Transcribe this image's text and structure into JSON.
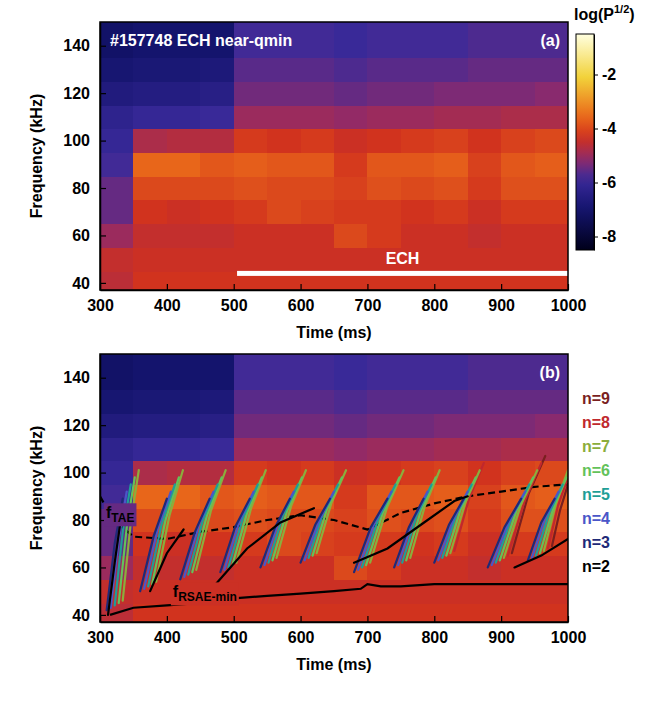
{
  "chart_data": [
    {
      "type": "heatmap",
      "panel": "(a)",
      "title": "#157748 ECH near-qmin",
      "x_label": "Time (ms)",
      "y_label": "Frequency (kHz)",
      "xlim": [
        300,
        1000
      ],
      "xticks": [
        300,
        400,
        500,
        600,
        700,
        800,
        900,
        1000
      ],
      "ylim": [
        37,
        150
      ],
      "yticks": [
        40,
        60,
        80,
        100,
        120,
        140
      ],
      "grid": false,
      "x_edges": [
        300,
        350,
        400,
        450,
        500,
        550,
        600,
        650,
        700,
        750,
        800,
        850,
        900,
        950,
        1000
      ],
      "y_edges": [
        37,
        45,
        55,
        65,
        75,
        85,
        95,
        105,
        115,
        125,
        135,
        150
      ],
      "cells": [
        [
          -4.6,
          -4.3,
          -4.3,
          -4.3,
          -4.3,
          -4.3,
          -4.3,
          -4.3,
          -4.3,
          -4.3,
          -4.3,
          -4.3,
          -4.3,
          -4.3
        ],
        [
          -4.5,
          -4.4,
          -4.4,
          -4.4,
          -4.4,
          -4.4,
          -4.4,
          -4.4,
          -4.4,
          -4.4,
          -4.4,
          -4.4,
          -4.4,
          -4.4
        ],
        [
          -5.0,
          -4.5,
          -4.5,
          -4.5,
          -4.4,
          -4.4,
          -4.4,
          -4.0,
          -4.2,
          -4.4,
          -4.4,
          -4.5,
          -4.4,
          -4.4
        ],
        [
          -5.5,
          -4.3,
          -4.4,
          -4.3,
          -4.2,
          -4.0,
          -4.1,
          -4.2,
          -4.2,
          -4.3,
          -4.2,
          -4.4,
          -4.2,
          -4.2
        ],
        [
          -5.5,
          -4.0,
          -4.0,
          -4.0,
          -3.9,
          -4.0,
          -4.0,
          -4.1,
          -3.9,
          -4.0,
          -3.9,
          -4.2,
          -3.9,
          -3.9
        ],
        [
          -5.8,
          -3.6,
          -3.6,
          -3.8,
          -3.7,
          -3.8,
          -3.8,
          -4.2,
          -3.8,
          -3.8,
          -3.7,
          -4.1,
          -3.8,
          -3.7
        ],
        [
          -6.0,
          -4.8,
          -4.7,
          -4.7,
          -4.2,
          -4.3,
          -4.2,
          -4.4,
          -4.3,
          -4.2,
          -4.1,
          -4.3,
          -4.1,
          -4.0
        ],
        [
          -6.2,
          -6.0,
          -6.0,
          -5.9,
          -5.0,
          -5.0,
          -5.0,
          -5.1,
          -5.0,
          -5.0,
          -4.9,
          -4.9,
          -4.8,
          -4.8
        ],
        [
          -6.6,
          -6.5,
          -6.5,
          -6.4,
          -5.4,
          -5.4,
          -5.4,
          -5.5,
          -5.4,
          -5.4,
          -5.3,
          -5.3,
          -5.3,
          -5.2
        ],
        [
          -6.9,
          -6.8,
          -6.8,
          -6.7,
          -5.6,
          -5.6,
          -5.6,
          -5.7,
          -5.6,
          -5.6,
          -5.6,
          -5.5,
          -5.5,
          -5.5
        ],
        [
          -7.1,
          -7.0,
          -7.0,
          -7.0,
          -5.8,
          -5.8,
          -5.8,
          -5.9,
          -5.8,
          -5.8,
          -5.8,
          -5.7,
          -5.7,
          -5.7
        ]
      ],
      "colorbar": {
        "label": "log(P1/2)",
        "range": [
          -8.5,
          -0.5
        ],
        "ticks": [
          -2,
          -4,
          -6,
          -8
        ]
      },
      "annotations": [
        {
          "text": "ECH",
          "x": [
            505,
            1000
          ],
          "y": 44
        }
      ]
    },
    {
      "type": "heatmap",
      "panel": "(b)",
      "x_label": "Time (ms)",
      "y_label": "Frequency (kHz)",
      "xlim": [
        300,
        1000
      ],
      "xticks": [
        300,
        400,
        500,
        600,
        700,
        800,
        900,
        1000
      ],
      "ylim": [
        37,
        150
      ],
      "yticks": [
        40,
        60,
        80,
        100,
        120,
        140
      ],
      "grid": false,
      "legend": "right",
      "x_edges": [
        300,
        350,
        400,
        450,
        500,
        550,
        600,
        650,
        700,
        750,
        800,
        850,
        900,
        950,
        1000
      ],
      "y_edges": [
        37,
        45,
        55,
        65,
        75,
        85,
        95,
        105,
        115,
        125,
        135,
        150
      ],
      "cells": [
        [
          -4.6,
          -4.3,
          -4.3,
          -4.3,
          -4.3,
          -4.3,
          -4.3,
          -4.3,
          -4.3,
          -4.3,
          -4.3,
          -4.3,
          -4.3,
          -4.3
        ],
        [
          -4.5,
          -4.4,
          -4.4,
          -4.4,
          -4.4,
          -4.4,
          -4.4,
          -4.4,
          -4.4,
          -4.4,
          -4.4,
          -4.4,
          -4.4,
          -4.4
        ],
        [
          -5.0,
          -4.5,
          -4.5,
          -4.5,
          -4.4,
          -4.4,
          -4.4,
          -4.0,
          -4.2,
          -4.4,
          -4.4,
          -4.5,
          -4.4,
          -4.4
        ],
        [
          -5.5,
          -4.3,
          -4.4,
          -4.3,
          -4.2,
          -4.0,
          -4.1,
          -4.2,
          -4.2,
          -4.3,
          -4.2,
          -4.4,
          -4.2,
          -4.2
        ],
        [
          -5.5,
          -4.0,
          -4.0,
          -4.0,
          -3.9,
          -4.0,
          -4.0,
          -4.1,
          -3.9,
          -4.0,
          -3.9,
          -4.2,
          -3.9,
          -3.9
        ],
        [
          -5.8,
          -3.6,
          -3.6,
          -3.8,
          -3.7,
          -3.8,
          -3.8,
          -4.2,
          -3.8,
          -3.8,
          -3.7,
          -4.1,
          -3.8,
          -3.7
        ],
        [
          -6.0,
          -4.8,
          -4.7,
          -4.7,
          -4.2,
          -4.3,
          -4.2,
          -4.4,
          -4.3,
          -4.2,
          -4.1,
          -4.3,
          -4.1,
          -4.0
        ],
        [
          -6.2,
          -6.0,
          -6.0,
          -5.9,
          -5.0,
          -5.0,
          -5.0,
          -5.1,
          -5.0,
          -5.0,
          -4.9,
          -4.9,
          -4.8,
          -4.8
        ],
        [
          -6.6,
          -6.5,
          -6.5,
          -6.4,
          -5.4,
          -5.4,
          -5.4,
          -5.5,
          -5.4,
          -5.4,
          -5.3,
          -5.3,
          -5.3,
          -5.2
        ],
        [
          -6.9,
          -6.8,
          -6.8,
          -6.7,
          -5.6,
          -5.6,
          -5.6,
          -5.7,
          -5.6,
          -5.6,
          -5.6,
          -5.5,
          -5.5,
          -5.5
        ],
        [
          -7.1,
          -7.0,
          -7.0,
          -7.0,
          -5.8,
          -5.8,
          -5.8,
          -5.9,
          -5.8,
          -5.8,
          -5.8,
          -5.7,
          -5.7,
          -5.7
        ]
      ],
      "series": [
        {
          "name": "n=9",
          "color": "#7a1f1f",
          "type": "line",
          "x": [
            916,
            941,
            966,
            null,
            976,
            988,
            1000
          ],
          "values": [
            66,
            91,
            107,
            null,
            69,
            84,
            95
          ]
        },
        {
          "name": "n=8",
          "color": "#c0282d",
          "type": "line",
          "x": [
            830,
            852,
            874,
            null,
            910,
            935,
            960,
            null,
            970,
            985,
            1000
          ],
          "values": [
            67,
            89,
            104,
            null,
            65,
            88,
            104,
            null,
            68,
            86,
            98
          ]
        },
        {
          "name": "n=7",
          "color": "#8cad3c",
          "type": "line",
          "x": [
            334,
            346,
            358,
            null,
            384,
            404,
            424,
            null,
            444,
            466,
            488,
            null,
            504,
            526,
            548,
            null,
            564,
            586,
            608,
            null,
            624,
            646,
            668,
            null,
            704,
            729,
            754,
            null,
            764,
            786,
            808,
            null,
            824,
            846,
            868,
            null,
            904,
            929,
            954,
            null,
            964,
            982,
            1000
          ],
          "values": [
            46,
            79,
            101,
            null,
            54,
            82,
            101,
            null,
            59,
            84,
            101,
            null,
            62,
            85,
            101,
            null,
            64,
            86,
            101,
            null,
            66,
            87,
            101,
            null,
            62,
            85,
            101,
            null,
            64,
            86,
            101,
            null,
            66,
            87,
            101,
            null,
            64,
            86,
            101,
            null,
            67,
            87,
            101
          ]
        },
        {
          "name": "n=6",
          "color": "#63c25a",
          "type": "line",
          "x": [
            328,
            340,
            352,
            null,
            378,
            398,
            418,
            null,
            438,
            460,
            482,
            null,
            498,
            520,
            542,
            null,
            558,
            580,
            602,
            null,
            618,
            640,
            662,
            null,
            698,
            723,
            748,
            null,
            758,
            780,
            802,
            null,
            818,
            840,
            862,
            null,
            898,
            923,
            948,
            null,
            958,
            978,
            998
          ],
          "values": [
            45,
            77,
            98,
            null,
            53,
            80,
            98,
            null,
            58,
            82,
            98,
            null,
            61,
            83,
            98,
            null,
            63,
            84,
            98,
            null,
            65,
            85,
            98,
            null,
            61,
            83,
            98,
            null,
            63,
            84,
            98,
            null,
            65,
            85,
            98,
            null,
            63,
            84,
            98,
            null,
            66,
            85,
            98
          ]
        },
        {
          "name": "n=5",
          "color": "#1f9e96",
          "type": "line",
          "x": [
            322,
            334,
            346,
            null,
            372,
            392,
            412,
            null,
            432,
            454,
            476,
            null,
            492,
            514,
            536,
            null,
            552,
            574,
            596,
            null,
            612,
            634,
            656,
            null,
            692,
            717,
            742,
            null,
            752,
            774,
            796,
            null,
            812,
            834,
            856,
            null,
            892,
            917,
            942,
            null,
            952,
            972,
            992
          ],
          "values": [
            44,
            75,
            95,
            null,
            52,
            78,
            95,
            null,
            57,
            80,
            95,
            null,
            60,
            81,
            95,
            null,
            62,
            82,
            95,
            null,
            64,
            83,
            95,
            null,
            60,
            81,
            95,
            null,
            62,
            82,
            95,
            null,
            64,
            83,
            95,
            null,
            62,
            82,
            95,
            null,
            65,
            83,
            95
          ]
        },
        {
          "name": "n=4",
          "color": "#4a56c8",
          "type": "line",
          "x": [
            316,
            328,
            340,
            null,
            366,
            386,
            406,
            null,
            426,
            448,
            470,
            null,
            486,
            508,
            530,
            null,
            546,
            568,
            590,
            null,
            606,
            628,
            650,
            null,
            686,
            711,
            736,
            null,
            746,
            768,
            790,
            null,
            806,
            828,
            850,
            null,
            886,
            911,
            936,
            null,
            946,
            966,
            986
          ],
          "values": [
            43,
            72,
            92,
            null,
            51,
            76,
            92,
            null,
            56,
            78,
            92,
            null,
            59,
            79,
            92,
            null,
            61,
            80,
            92,
            null,
            63,
            80,
            92,
            null,
            59,
            79,
            92,
            null,
            61,
            80,
            92,
            null,
            63,
            80,
            92,
            null,
            61,
            79,
            92,
            null,
            64,
            81,
            92
          ]
        },
        {
          "name": "n=3",
          "color": "#1e2a78",
          "type": "line",
          "x": [
            310,
            322,
            334,
            null,
            360,
            380,
            400,
            null,
            420,
            442,
            464,
            null,
            480,
            502,
            524,
            null,
            540,
            562,
            584,
            null,
            600,
            622,
            644,
            null,
            680,
            705,
            730,
            null,
            740,
            762,
            784,
            null,
            800,
            822,
            844,
            null,
            880,
            905,
            930,
            null,
            940,
            960,
            980
          ],
          "values": [
            42,
            70,
            89,
            null,
            50,
            73,
            89,
            null,
            55,
            75,
            89,
            null,
            58,
            77,
            89,
            null,
            60,
            77,
            89,
            null,
            62,
            78,
            89,
            null,
            58,
            77,
            89,
            null,
            60,
            77,
            89,
            null,
            62,
            78,
            89,
            null,
            60,
            77,
            89,
            null,
            63,
            79,
            89
          ]
        },
        {
          "name": "n=2",
          "color": "#000000",
          "type": "line",
          "x": [
            312,
            322,
            332,
            null,
            375,
            400,
            425,
            null,
            470,
            520,
            570,
            620,
            null,
            680,
            730,
            780,
            830,
            850,
            null,
            920,
            960,
            1000
          ],
          "values": [
            40,
            62,
            82,
            null,
            50,
            66,
            76,
            null,
            52,
            68,
            79,
            85,
            null,
            62,
            68,
            78,
            88,
            90,
            null,
            60,
            65,
            72
          ]
        }
      ],
      "curves": [
        {
          "name": "fTAE",
          "color": "#000000",
          "type": "line",
          "line_style": "dashed",
          "x": [
            300,
            320,
            350,
            400,
            450,
            500,
            550,
            600,
            650,
            700,
            750,
            800,
            850,
            900,
            950,
            1000
          ],
          "values": [
            90,
            80,
            73,
            72,
            75,
            77,
            80,
            82,
            80,
            76,
            83,
            87,
            90,
            92,
            94,
            95
          ]
        },
        {
          "name": "fRSAE-min",
          "color": "#000000",
          "type": "line",
          "line_style": "solid",
          "x": [
            315,
            350,
            400,
            450,
            500,
            550,
            600,
            650,
            690,
            700,
            720,
            750,
            800,
            850,
            900,
            950,
            1000
          ],
          "values": [
            40,
            43,
            44,
            45,
            47,
            48,
            49,
            50,
            51,
            53,
            52,
            52,
            53,
            53,
            53,
            53,
            53
          ]
        }
      ]
    }
  ]
}
